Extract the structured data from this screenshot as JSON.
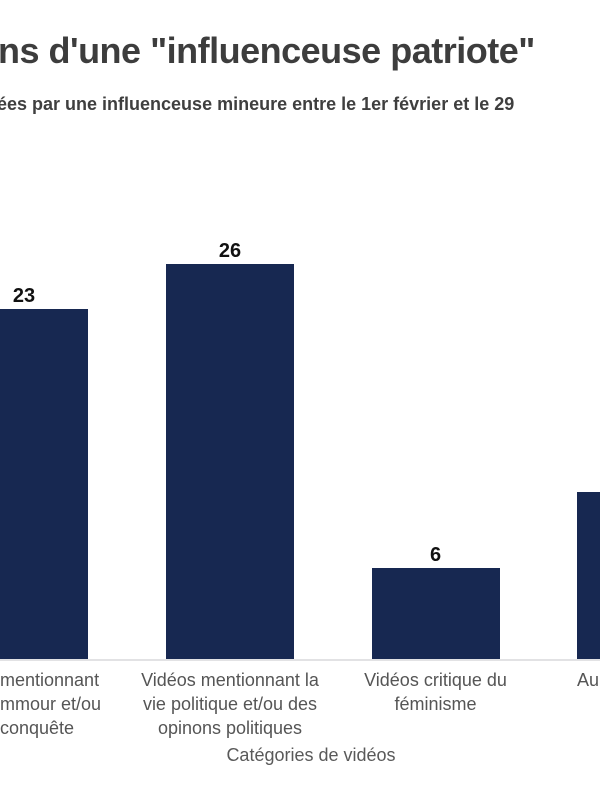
{
  "header": {
    "title": "ns d'une \"influenceuse patriote\"",
    "subtitle": "ées par une influenceuse mineure entre le 1er février et le 29"
  },
  "chart_data": {
    "type": "bar",
    "title": "ns d'une \"influenceuse patriote\"",
    "subtitle": "ées par une influenceuse mineure entre le 1er février et le 29",
    "xlabel": "Catégories de vidéos",
    "ylabel": "",
    "ylim": [
      0,
      30
    ],
    "grid": false,
    "legend": "none",
    "bar_color": "#172851",
    "axis_line_color": "#e2e2e4",
    "value_label_color": "#111111",
    "category_label_color": "#555555",
    "categories": [
      "…mentionnant …mmour et/ou …conquête (tronqué à gauche)",
      "Vidéos mentionnant la vie politique et/ou des opinons politiques",
      "Vidéos critique du féminisme",
      "Au… (tronqué à droite)"
    ],
    "values": [
      23,
      26,
      6,
      11
    ],
    "bars": [
      {
        "value": 23,
        "value_label": "23",
        "category_lines": [
          "mentionnant",
          "mmour et/ou",
          "conquête"
        ]
      },
      {
        "value": 26,
        "value_label": "26",
        "category_lines": [
          "Vidéos mentionnant la",
          "vie politique et/ou des",
          "opinons politiques"
        ]
      },
      {
        "value": 6,
        "value_label": "6",
        "category_lines": [
          "Vidéos critique du",
          "féminisme"
        ]
      },
      {
        "value": 11,
        "value_label": "",
        "category_lines": [
          "Au"
        ]
      }
    ]
  }
}
